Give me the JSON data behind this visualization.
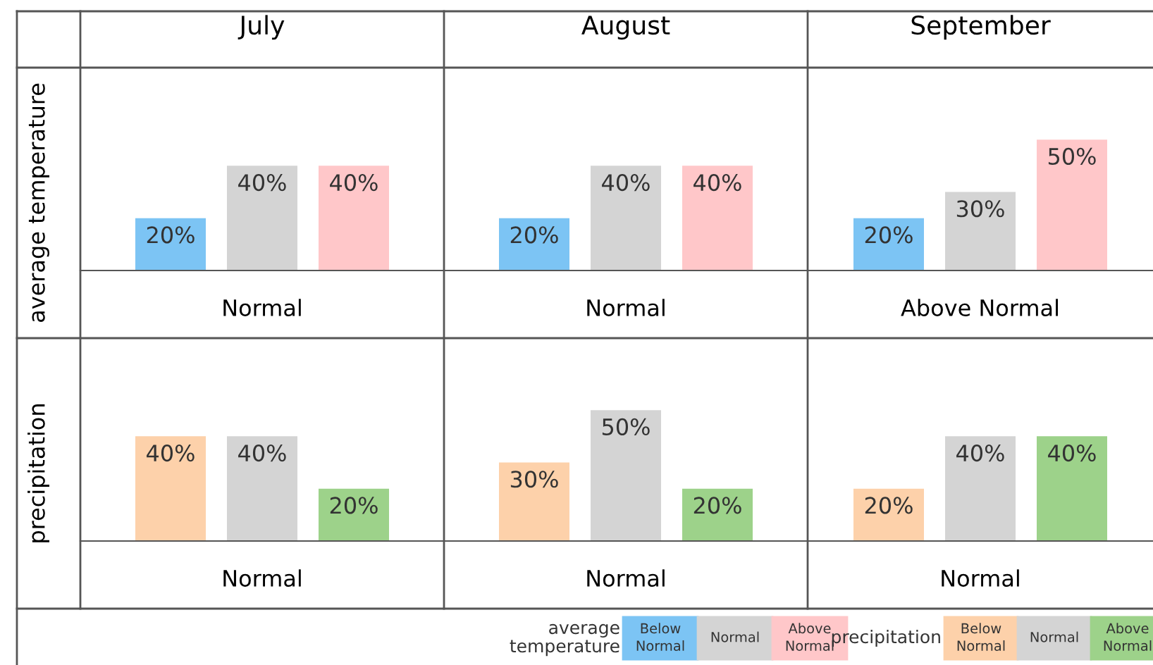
{
  "chart_data": [
    {
      "type": "bar",
      "title": "July",
      "ylabel": "average temperature",
      "xlabel": "Normal",
      "categories": [
        null
      ],
      "series": [
        {
          "color": "#7cc4f4",
          "values": [
            20
          ],
          "value_labels": [
            "20%"
          ]
        },
        {
          "color": "#d4d4d4",
          "values": [
            40
          ],
          "value_labels": [
            "40%"
          ]
        },
        {
          "color": "#ffc7c9",
          "values": [
            40
          ],
          "value_labels": [
            "40%"
          ]
        }
      ]
    },
    {
      "type": "bar",
      "title": "August",
      "xlabel": "Normal",
      "categories": [
        null
      ],
      "series": [
        {
          "color": "#7cc4f4",
          "values": [
            20
          ],
          "value_labels": [
            "20%"
          ]
        },
        {
          "color": "#d4d4d4",
          "values": [
            40
          ],
          "value_labels": [
            "40%"
          ]
        },
        {
          "color": "#ffc7c9",
          "values": [
            40
          ],
          "value_labels": [
            "40%"
          ]
        }
      ]
    },
    {
      "type": "bar",
      "title": "September",
      "xlabel": "Above Normal",
      "legend_title": "average\ntemperature",
      "legend": "bottom",
      "categories": [
        null
      ],
      "series": [
        {
          "name": "Below\nNormal",
          "color": "#7cc4f4",
          "values": [
            20
          ],
          "value_labels": [
            "20%"
          ]
        },
        {
          "name": "Normal",
          "color": "#d4d4d4",
          "values": [
            30
          ],
          "value_labels": [
            "30%"
          ]
        },
        {
          "name": "Above\nNormal",
          "color": "#ffc7c9",
          "values": [
            50
          ],
          "value_labels": [
            "50%"
          ]
        }
      ]
    },
    {
      "type": "bar",
      "ylabel": "precipitation",
      "xlabel": "Normal",
      "categories": [
        null
      ],
      "series": [
        {
          "color": "#fdd1aa",
          "values": [
            40
          ],
          "value_labels": [
            "40%"
          ]
        },
        {
          "color": "#d4d4d4",
          "values": [
            40
          ],
          "value_labels": [
            "40%"
          ]
        },
        {
          "color": "#9dd28a",
          "values": [
            20
          ],
          "value_labels": [
            "20%"
          ]
        }
      ]
    },
    {
      "type": "bar",
      "xlabel": "Normal",
      "categories": [
        null
      ],
      "series": [
        {
          "color": "#fdd1aa",
          "values": [
            30
          ],
          "value_labels": [
            "30%"
          ]
        },
        {
          "color": "#d4d4d4",
          "values": [
            50
          ],
          "value_labels": [
            "50%"
          ]
        },
        {
          "color": "#9dd28a",
          "values": [
            20
          ],
          "value_labels": [
            "20%"
          ]
        }
      ]
    },
    {
      "type": "bar",
      "xlabel": "Normal",
      "legend_title": "precipitation",
      "legend": "bottom",
      "categories": [
        null
      ],
      "series": [
        {
          "name": "Below\nNormal",
          "color": "#fdd1aa",
          "values": [
            20
          ],
          "value_labels": [
            "20%"
          ]
        },
        {
          "name": "Normal",
          "color": "#d4d4d4",
          "values": [
            40
          ],
          "value_labels": [
            "40%"
          ]
        },
        {
          "name": "Above\nNormal",
          "color": "#9dd28a",
          "values": [
            40
          ],
          "value_labels": [
            "40%"
          ]
        }
      ]
    }
  ]
}
